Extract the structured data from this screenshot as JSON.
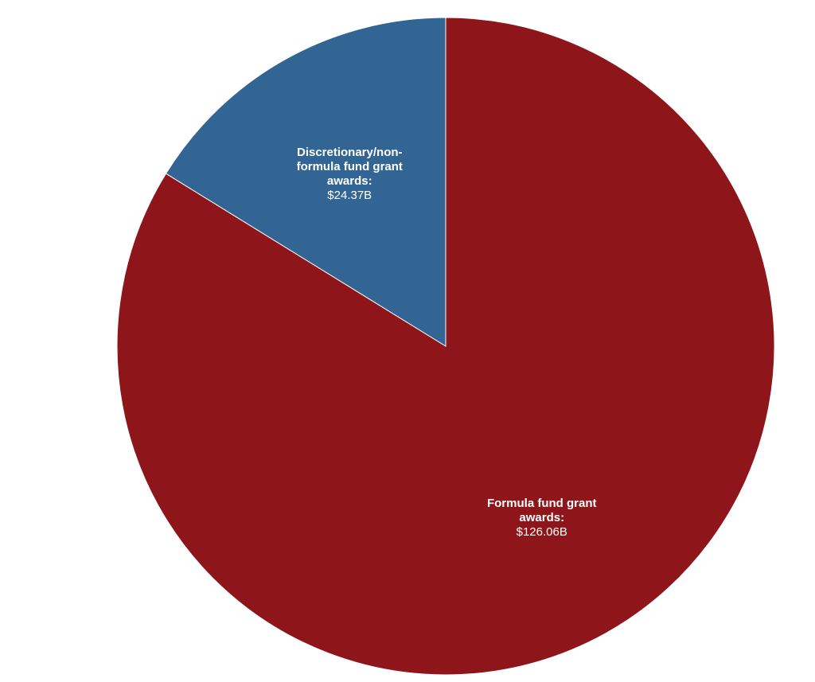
{
  "chart_data": {
    "type": "pie",
    "categories": [
      "Formula fund grant awards:",
      "Discretionary/non-formula fund grant awards:"
    ],
    "values": [
      126.06,
      24.37
    ],
    "value_labels": [
      "$126.06B",
      "$24.37B"
    ],
    "colors": [
      "#8e1519",
      "#336594"
    ]
  }
}
